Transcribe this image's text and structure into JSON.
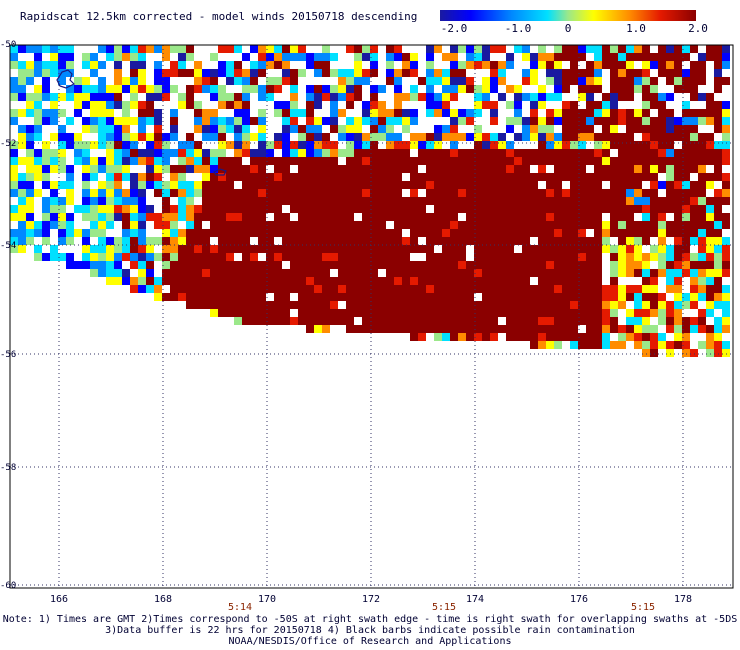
{
  "title": "Rapidscat 12.5km corrected - model winds 20150718 descending",
  "colorbar": {
    "labels": [
      "-2.0",
      "-1.0",
      "0",
      "1.0",
      "2.0"
    ],
    "values": [
      -2.0,
      -1.0,
      0,
      1.0,
      2.0
    ],
    "range": [
      -2.0,
      2.0
    ],
    "colors": [
      "#1a1aa0",
      "#0000ff",
      "#0088ff",
      "#00e0ff",
      "#9be88a",
      "#ffff00",
      "#ff8c00",
      "#e51a00",
      "#8b0000"
    ]
  },
  "map": {
    "lat_labels": [
      "-50",
      "-52",
      "-54",
      "-56",
      "-58",
      "-60"
    ],
    "lat_values": [
      -50,
      -52,
      -54,
      -56,
      -58,
      -60
    ],
    "lon_labels": [
      "166",
      "168",
      "170",
      "172",
      "174",
      "176",
      "178"
    ],
    "lon_values": [
      166,
      168,
      170,
      172,
      174,
      176,
      178
    ],
    "lon_range": [
      165.1,
      179.0
    ],
    "lat_range": [
      -60.0,
      -50.0
    ],
    "time_labels": [
      {
        "text": "5:14",
        "lon": 169.6
      },
      {
        "text": "5:15",
        "lon": 173.4
      },
      {
        "text": "5:15",
        "lon": 177.2
      }
    ],
    "grid": true,
    "swath_field": "wind speed difference (corrected - model), colored per colorbar"
  },
  "notes": [
    "Note: 1) Times are GMT 2)Times correspond to -50S at right swath edge - time is right swath for overlapping swaths at -5DS",
    "3)Data buffer is 22 hrs for 20150718 4) Black barbs indicate possible rain contamination",
    "NOAA/NESDIS/Office of Research and Applications"
  ]
}
